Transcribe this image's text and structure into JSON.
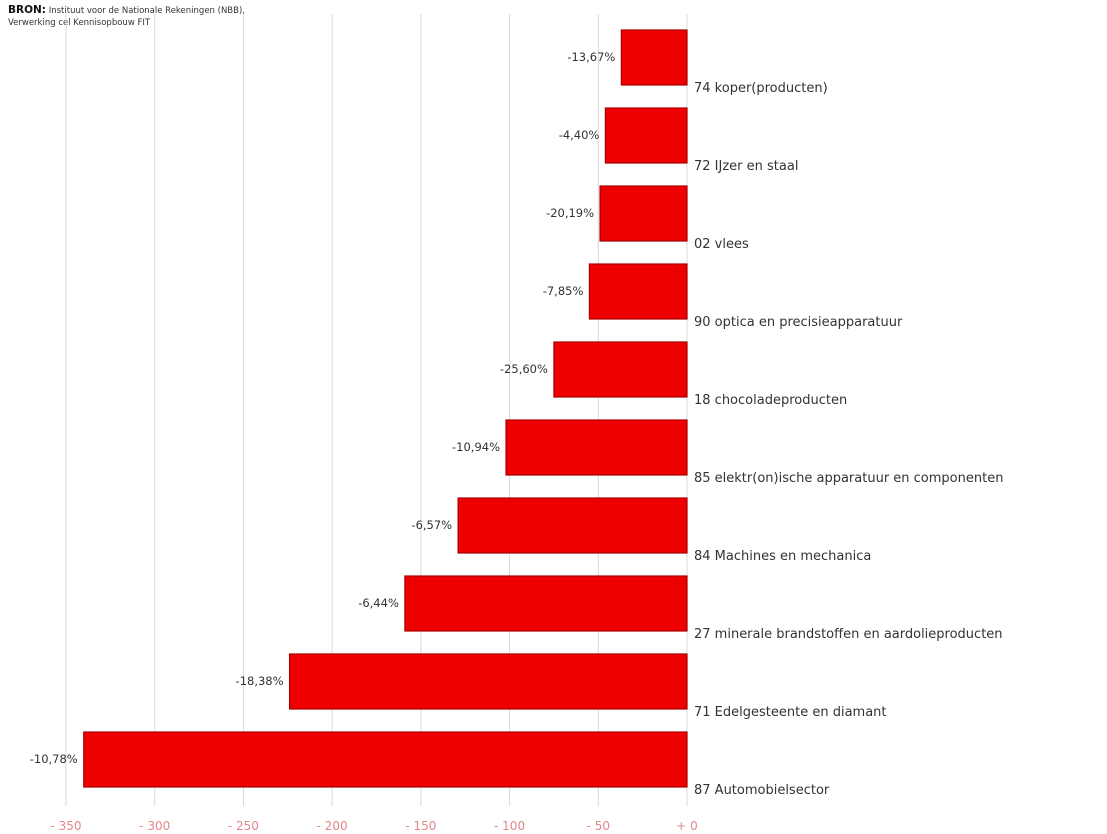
{
  "source": {
    "label": "BRON:",
    "text": "Instituut voor de Nationale Rekeningen (NBB), Verwerking cel Kennisopbouw FIT"
  },
  "top_title": "",
  "colors": {
    "bar": "#ee0000",
    "bar_edge": "#a80000",
    "grid": "#d9d9d9",
    "tick": "#e2878a"
  },
  "chart_data": {
    "type": "bar",
    "orientation": "horizontal",
    "categories": [
      "74 koper(producten)",
      "72 IJzer en staal",
      "02 vlees",
      "90 optica en precisieapparatuur",
      "18 chocoladeproducten",
      "85 elektr(on)ische apparatuur en componenten",
      "84 Machines en mechanica",
      "27 minerale brandstoffen en aardolieproducten",
      "71 Edelgesteente en diamant",
      "87 Automobielsector"
    ],
    "values": [
      -37,
      -46,
      -49,
      -55,
      -75,
      -102,
      -129,
      -159,
      -224,
      -340
    ],
    "data_labels": [
      "-13,67%",
      "-4,40%",
      "-20,19%",
      "-7,85%",
      "-25,60%",
      "-10,94%",
      "-6,57%",
      "-6,44%",
      "-18,38%",
      "-10,78%"
    ],
    "xlim": [
      -350,
      0
    ],
    "xticks": [
      -350,
      -300,
      -250,
      -200,
      -150,
      -100,
      -50,
      0
    ],
    "xtick_labels": [
      "- 350",
      "- 300",
      "- 250",
      "- 200",
      "- 150",
      "- 100",
      "- 50",
      "+ 0"
    ],
    "grid": true,
    "title": "",
    "xlabel": "",
    "ylabel": ""
  }
}
